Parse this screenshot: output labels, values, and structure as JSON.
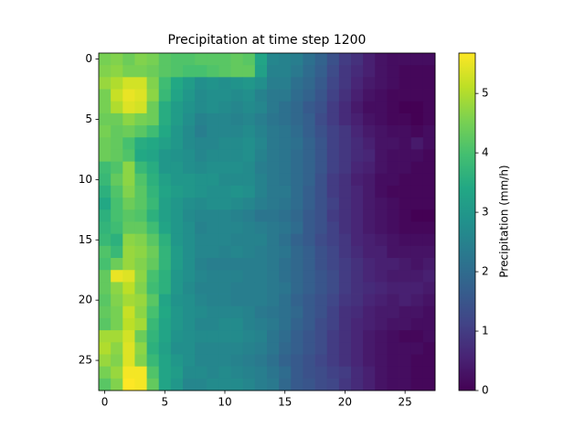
{
  "chart_data": {
    "type": "heatmap",
    "title": "Precipitation at time step 1200",
    "colorbar_label": "Precipitation (mm/h)",
    "colormap": "viridis",
    "xlim": [
      -0.5,
      27.5
    ],
    "ylim": [
      27.5,
      -0.5
    ],
    "xticks": [
      0,
      5,
      10,
      15,
      20,
      25
    ],
    "yticks": [
      0,
      5,
      10,
      15,
      20,
      25
    ],
    "clim": [
      0,
      5.68
    ],
    "cticks": [
      0,
      1,
      2,
      3,
      4,
      5
    ],
    "values": [
      [
        4.5,
        4.6,
        4.4,
        4.6,
        4.5,
        4.2,
        4.1,
        4.1,
        4.2,
        4.2,
        4.2,
        4.3,
        4.2,
        3.3,
        2.6,
        2.5,
        2.4,
        2.1,
        1.8,
        1.4,
        1.0,
        0.8,
        0.5,
        0.3,
        0.2,
        0.2,
        0.2,
        0.2
      ],
      [
        4.6,
        4.7,
        4.5,
        4.5,
        4.4,
        4.2,
        4.1,
        4.0,
        4.0,
        4.1,
        4.2,
        4.3,
        4.3,
        3.2,
        2.5,
        2.5,
        2.3,
        2.0,
        1.7,
        1.3,
        0.9,
        0.7,
        0.5,
        0.3,
        0.2,
        0.1,
        0.1,
        0.1
      ],
      [
        4.8,
        5.0,
        5.3,
        5.3,
        4.6,
        3.9,
        3.4,
        3.1,
        2.8,
        2.9,
        2.8,
        2.9,
        3.0,
        2.8,
        2.4,
        2.4,
        2.1,
        1.9,
        1.6,
        1.2,
        0.9,
        0.6,
        0.4,
        0.3,
        0.2,
        0.1,
        0.1,
        0.1
      ],
      [
        4.5,
        5.2,
        5.5,
        5.4,
        4.7,
        3.8,
        3.3,
        3.0,
        2.7,
        2.8,
        2.8,
        2.7,
        2.8,
        2.5,
        2.3,
        2.3,
        2.0,
        1.8,
        1.5,
        1.1,
        0.8,
        0.5,
        0.3,
        0.2,
        0.1,
        0.1,
        0.1,
        0.1
      ],
      [
        4.5,
        5.0,
        5.4,
        5.3,
        4.4,
        3.5,
        3.1,
        2.9,
        2.7,
        2.8,
        2.7,
        2.6,
        2.7,
        2.6,
        2.3,
        2.1,
        1.9,
        1.6,
        1.4,
        1.0,
        0.7,
        0.4,
        0.2,
        0.2,
        0.1,
        0.0,
        0.0,
        0.1
      ],
      [
        4.4,
        4.4,
        4.7,
        4.5,
        4.4,
        3.5,
        3.1,
        2.8,
        2.5,
        2.6,
        2.6,
        2.5,
        2.6,
        2.4,
        2.2,
        2.1,
        1.9,
        1.7,
        1.3,
        1.0,
        0.7,
        0.5,
        0.3,
        0.2,
        0.1,
        0.1,
        0.0,
        0.1
      ],
      [
        4.5,
        4.3,
        4.4,
        4.2,
        3.9,
        3.4,
        3.0,
        2.7,
        2.4,
        2.6,
        2.6,
        2.6,
        2.7,
        2.5,
        2.3,
        2.2,
        2.0,
        1.7,
        1.4,
        1.1,
        0.9,
        0.6,
        0.4,
        0.3,
        0.2,
        0.2,
        0.1,
        0.2
      ],
      [
        4.4,
        4.3,
        4.0,
        3.5,
        3.4,
        3.2,
        3.0,
        2.7,
        2.6,
        2.6,
        2.7,
        2.7,
        2.8,
        2.6,
        2.3,
        2.2,
        2.1,
        1.8,
        1.5,
        1.1,
        0.9,
        0.7,
        0.5,
        0.3,
        0.3,
        0.2,
        0.4,
        0.2
      ],
      [
        4.4,
        4.3,
        4.1,
        3.4,
        3.3,
        3.0,
        2.9,
        2.8,
        2.6,
        2.7,
        2.7,
        2.7,
        2.8,
        2.5,
        2.3,
        2.2,
        2.0,
        1.8,
        1.5,
        1.1,
        0.9,
        0.7,
        0.6,
        0.3,
        0.2,
        0.2,
        0.2,
        0.1
      ],
      [
        3.9,
        4.1,
        4.7,
        3.8,
        3.5,
        3.0,
        3.0,
        2.8,
        2.7,
        2.8,
        2.8,
        2.8,
        2.7,
        2.4,
        2.3,
        2.2,
        2.0,
        1.8,
        1.5,
        1.1,
        0.9,
        0.6,
        0.5,
        0.3,
        0.2,
        0.2,
        0.1,
        0.1
      ],
      [
        3.8,
        4.3,
        4.7,
        4.1,
        3.6,
        3.2,
        3.0,
        3.0,
        2.9,
        2.9,
        2.7,
        2.7,
        2.7,
        2.5,
        2.3,
        2.2,
        2.0,
        1.8,
        1.4,
        1.0,
        0.8,
        0.5,
        0.4,
        0.2,
        0.2,
        0.1,
        0.1,
        0.1
      ],
      [
        3.6,
        4.1,
        4.6,
        4.2,
        3.7,
        3.3,
        3.1,
        3.0,
        2.9,
        2.8,
        2.8,
        2.9,
        2.8,
        2.5,
        2.3,
        2.3,
        2.0,
        1.7,
        1.4,
        1.0,
        0.8,
        0.6,
        0.4,
        0.2,
        0.1,
        0.1,
        0.1,
        0.1
      ],
      [
        3.4,
        4.0,
        4.4,
        4.2,
        3.8,
        3.2,
        3.0,
        2.8,
        2.7,
        2.8,
        2.8,
        2.7,
        2.6,
        2.4,
        2.3,
        2.2,
        2.0,
        1.7,
        1.4,
        1.1,
        0.8,
        0.6,
        0.4,
        0.3,
        0.2,
        0.1,
        0.1,
        0.1
      ],
      [
        3.6,
        4.0,
        4.2,
        4.1,
        3.6,
        3.2,
        3.0,
        2.7,
        2.6,
        2.6,
        2.6,
        2.5,
        2.4,
        2.2,
        2.2,
        2.1,
        1.9,
        1.6,
        1.4,
        1.0,
        0.8,
        0.6,
        0.4,
        0.3,
        0.2,
        0.1,
        0.0,
        0.0
      ],
      [
        3.7,
        3.9,
        4.3,
        4.3,
        3.9,
        3.3,
        3.0,
        2.8,
        2.5,
        2.6,
        2.6,
        2.6,
        2.5,
        2.4,
        2.3,
        2.2,
        2.0,
        1.6,
        1.4,
        1.1,
        0.8,
        0.6,
        0.4,
        0.3,
        0.2,
        0.1,
        0.1,
        0.1
      ],
      [
        3.8,
        3.6,
        4.7,
        4.6,
        4.2,
        3.6,
        3.0,
        2.8,
        2.6,
        2.6,
        2.6,
        2.5,
        2.5,
        2.5,
        2.3,
        2.1,
        1.8,
        1.6,
        1.3,
        1.1,
        0.9,
        0.6,
        0.5,
        0.4,
        0.3,
        0.2,
        0.2,
        0.2
      ],
      [
        4.1,
        3.8,
        4.8,
        4.7,
        4.4,
        3.7,
        3.1,
        2.8,
        2.6,
        2.6,
        2.5,
        2.6,
        2.5,
        2.4,
        2.3,
        2.2,
        1.9,
        1.7,
        1.4,
        1.2,
        0.9,
        0.7,
        0.5,
        0.5,
        0.3,
        0.3,
        0.3,
        0.3
      ],
      [
        4.0,
        4.4,
        4.8,
        4.6,
        4.3,
        3.7,
        3.1,
        2.8,
        2.5,
        2.4,
        2.4,
        2.4,
        2.4,
        2.4,
        2.3,
        2.1,
        1.9,
        1.7,
        1.4,
        1.2,
        1.0,
        0.8,
        0.6,
        0.5,
        0.5,
        0.4,
        0.3,
        0.4
      ],
      [
        4.3,
        5.5,
        5.4,
        4.7,
        4.0,
        3.6,
        3.0,
        2.8,
        2.6,
        2.5,
        2.5,
        2.5,
        2.4,
        2.4,
        2.3,
        2.1,
        1.9,
        1.7,
        1.5,
        1.3,
        1.0,
        0.8,
        0.6,
        0.5,
        0.4,
        0.4,
        0.4,
        0.5
      ],
      [
        4.3,
        4.7,
        5.1,
        4.6,
        3.9,
        3.6,
        3.0,
        2.7,
        2.5,
        2.5,
        2.5,
        2.4,
        2.4,
        2.4,
        2.3,
        2.2,
        1.9,
        1.7,
        1.5,
        1.3,
        1.0,
        0.8,
        0.7,
        0.6,
        0.5,
        0.5,
        0.5,
        0.4
      ],
      [
        4.2,
        4.6,
        4.9,
        4.8,
        4.2,
        3.3,
        2.9,
        2.8,
        2.6,
        2.5,
        2.5,
        2.4,
        2.4,
        2.4,
        2.3,
        2.1,
        1.8,
        1.6,
        1.4,
        1.2,
        0.9,
        0.8,
        0.6,
        0.5,
        0.4,
        0.5,
        0.4,
        0.3
      ],
      [
        4.3,
        4.5,
        5.2,
        4.7,
        4.0,
        3.4,
        3.0,
        2.8,
        2.7,
        2.6,
        2.6,
        2.6,
        2.5,
        2.3,
        2.2,
        2.1,
        1.9,
        1.6,
        1.4,
        1.1,
        0.8,
        0.7,
        0.5,
        0.4,
        0.4,
        0.3,
        0.3,
        0.2
      ],
      [
        4.2,
        4.5,
        5.1,
        4.9,
        3.8,
        3.3,
        3.0,
        2.8,
        2.6,
        2.6,
        2.7,
        2.7,
        2.5,
        2.4,
        2.3,
        2.1,
        1.8,
        1.6,
        1.3,
        1.1,
        0.8,
        0.6,
        0.5,
        0.4,
        0.3,
        0.3,
        0.2,
        0.2
      ],
      [
        4.9,
        4.9,
        5.3,
        4.4,
        3.7,
        3.3,
        2.9,
        2.8,
        2.7,
        2.7,
        2.7,
        2.7,
        2.6,
        2.5,
        2.2,
        2.0,
        1.7,
        1.5,
        1.3,
        1.0,
        0.8,
        0.6,
        0.4,
        0.3,
        0.2,
        0.1,
        0.1,
        0.2
      ],
      [
        5.0,
        4.7,
        5.4,
        4.7,
        3.6,
        3.2,
        2.8,
        2.8,
        2.6,
        2.6,
        2.6,
        2.6,
        2.5,
        2.4,
        2.2,
        1.9,
        1.7,
        1.5,
        1.3,
        1.0,
        0.8,
        0.6,
        0.4,
        0.3,
        0.2,
        0.2,
        0.2,
        0.1
      ],
      [
        4.8,
        4.6,
        5.4,
        4.6,
        3.8,
        3.3,
        3.0,
        2.8,
        2.6,
        2.6,
        2.6,
        2.5,
        2.4,
        2.3,
        2.1,
        1.8,
        1.6,
        1.4,
        1.2,
        1.0,
        0.8,
        0.6,
        0.4,
        0.3,
        0.2,
        0.2,
        0.1,
        0.1
      ],
      [
        4.5,
        4.8,
        5.6,
        5.6,
        4.1,
        3.3,
        3.1,
        2.7,
        2.7,
        2.6,
        2.7,
        2.6,
        2.5,
        2.4,
        2.2,
        2.0,
        1.6,
        1.4,
        1.3,
        1.1,
        1.0,
        0.7,
        0.5,
        0.3,
        0.2,
        0.2,
        0.1,
        0.1
      ],
      [
        4.2,
        4.6,
        5.7,
        5.6,
        4.3,
        3.3,
        3.0,
        2.6,
        2.6,
        2.7,
        2.7,
        2.7,
        2.6,
        2.4,
        2.3,
        1.9,
        1.6,
        1.5,
        1.3,
        1.2,
        0.9,
        0.7,
        0.5,
        0.3,
        0.2,
        0.2,
        0.1,
        0.1
      ]
    ]
  }
}
